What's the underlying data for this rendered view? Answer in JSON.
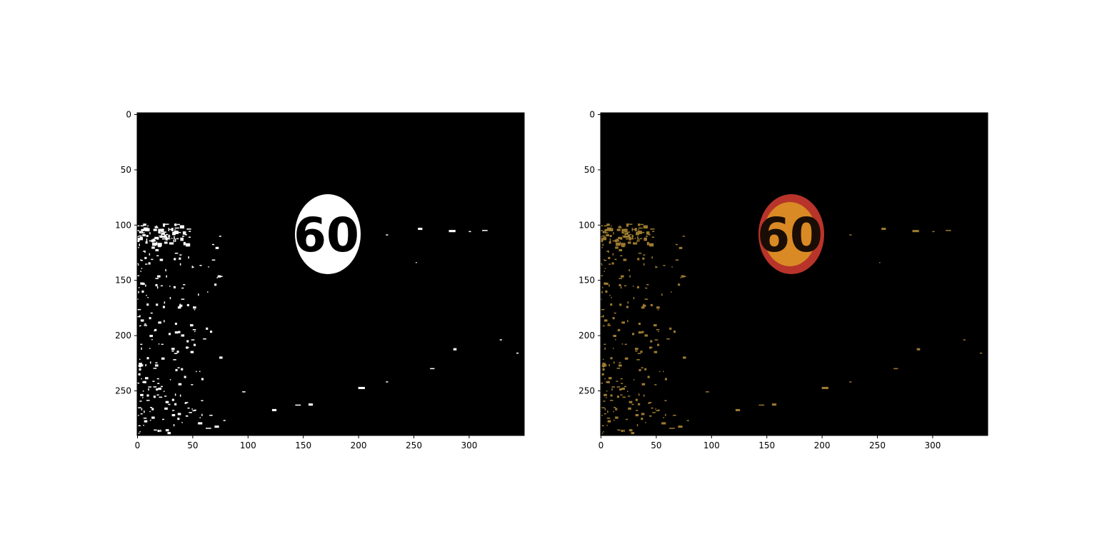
{
  "figure": {
    "panels": [
      {
        "name": "binary-mask",
        "image": "binary mask of detected sign region",
        "xticks": [
          "0",
          "50",
          "100",
          "150",
          "200",
          "250",
          "300"
        ],
        "yticks": [
          "0",
          "50",
          "100",
          "150",
          "200",
          "250"
        ],
        "sign_text": "60",
        "colors": {
          "background": "#000000",
          "foreground": "#ffffff"
        }
      },
      {
        "name": "masked-color",
        "image": "color image masked to detected sign region",
        "xticks": [
          "0",
          "50",
          "100",
          "150",
          "200",
          "250",
          "300"
        ],
        "yticks": [
          "0",
          "50",
          "100",
          "150",
          "200",
          "250"
        ],
        "sign_text": "60",
        "colors": {
          "background": "#000000",
          "ring": "#b8342a",
          "face": "#d98a24",
          "speckle": "#9c7a30"
        }
      }
    ],
    "image_size": {
      "width": 350,
      "height": 292
    },
    "axis_units": "pixels"
  }
}
